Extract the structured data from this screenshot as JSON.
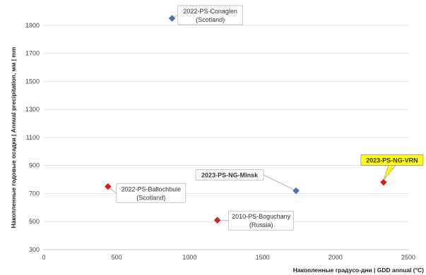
{
  "chart_data": {
    "type": "scatter",
    "xlabel": "Накопленные градусо-дни | GDD annual (°C)",
    "ylabel": "Накопленные годовые осадки | Annual precipitation, мм | mm",
    "xlim": [
      0,
      2500
    ],
    "ylim": [
      300,
      2000
    ],
    "x_ticks": [
      0,
      500,
      1000,
      1500,
      2000,
      2500
    ],
    "y_ticks": [
      300,
      500,
      700,
      900,
      1100,
      1300,
      1500,
      1700,
      1900
    ],
    "grid": "horizontal",
    "legend": "none",
    "points": [
      {
        "label_lines": [
          "2022-PS-Conaglen",
          "(Scotland)"
        ],
        "x": 880,
        "y": 1950,
        "color": "#4f6fa8",
        "label_style": "normal"
      },
      {
        "label_lines": [
          "2022-PS-Ballochbuie",
          "(Scotland)"
        ],
        "x": 440,
        "y": 750,
        "color": "#d42121",
        "label_style": "normal"
      },
      {
        "label_lines": [
          "2010-PS-Boguchany",
          "(Russia)"
        ],
        "x": 1190,
        "y": 510,
        "color": "#d42121",
        "label_style": "normal"
      },
      {
        "label_lines": [
          "2023-PS-NG-Minsk"
        ],
        "x": 1730,
        "y": 720,
        "color": "#4f6fa8",
        "label_style": "bold"
      },
      {
        "label_lines": [
          "2023-PS-NG-VRN"
        ],
        "x": 2330,
        "y": 780,
        "color": "#d42121",
        "label_style": "highlight"
      }
    ]
  }
}
